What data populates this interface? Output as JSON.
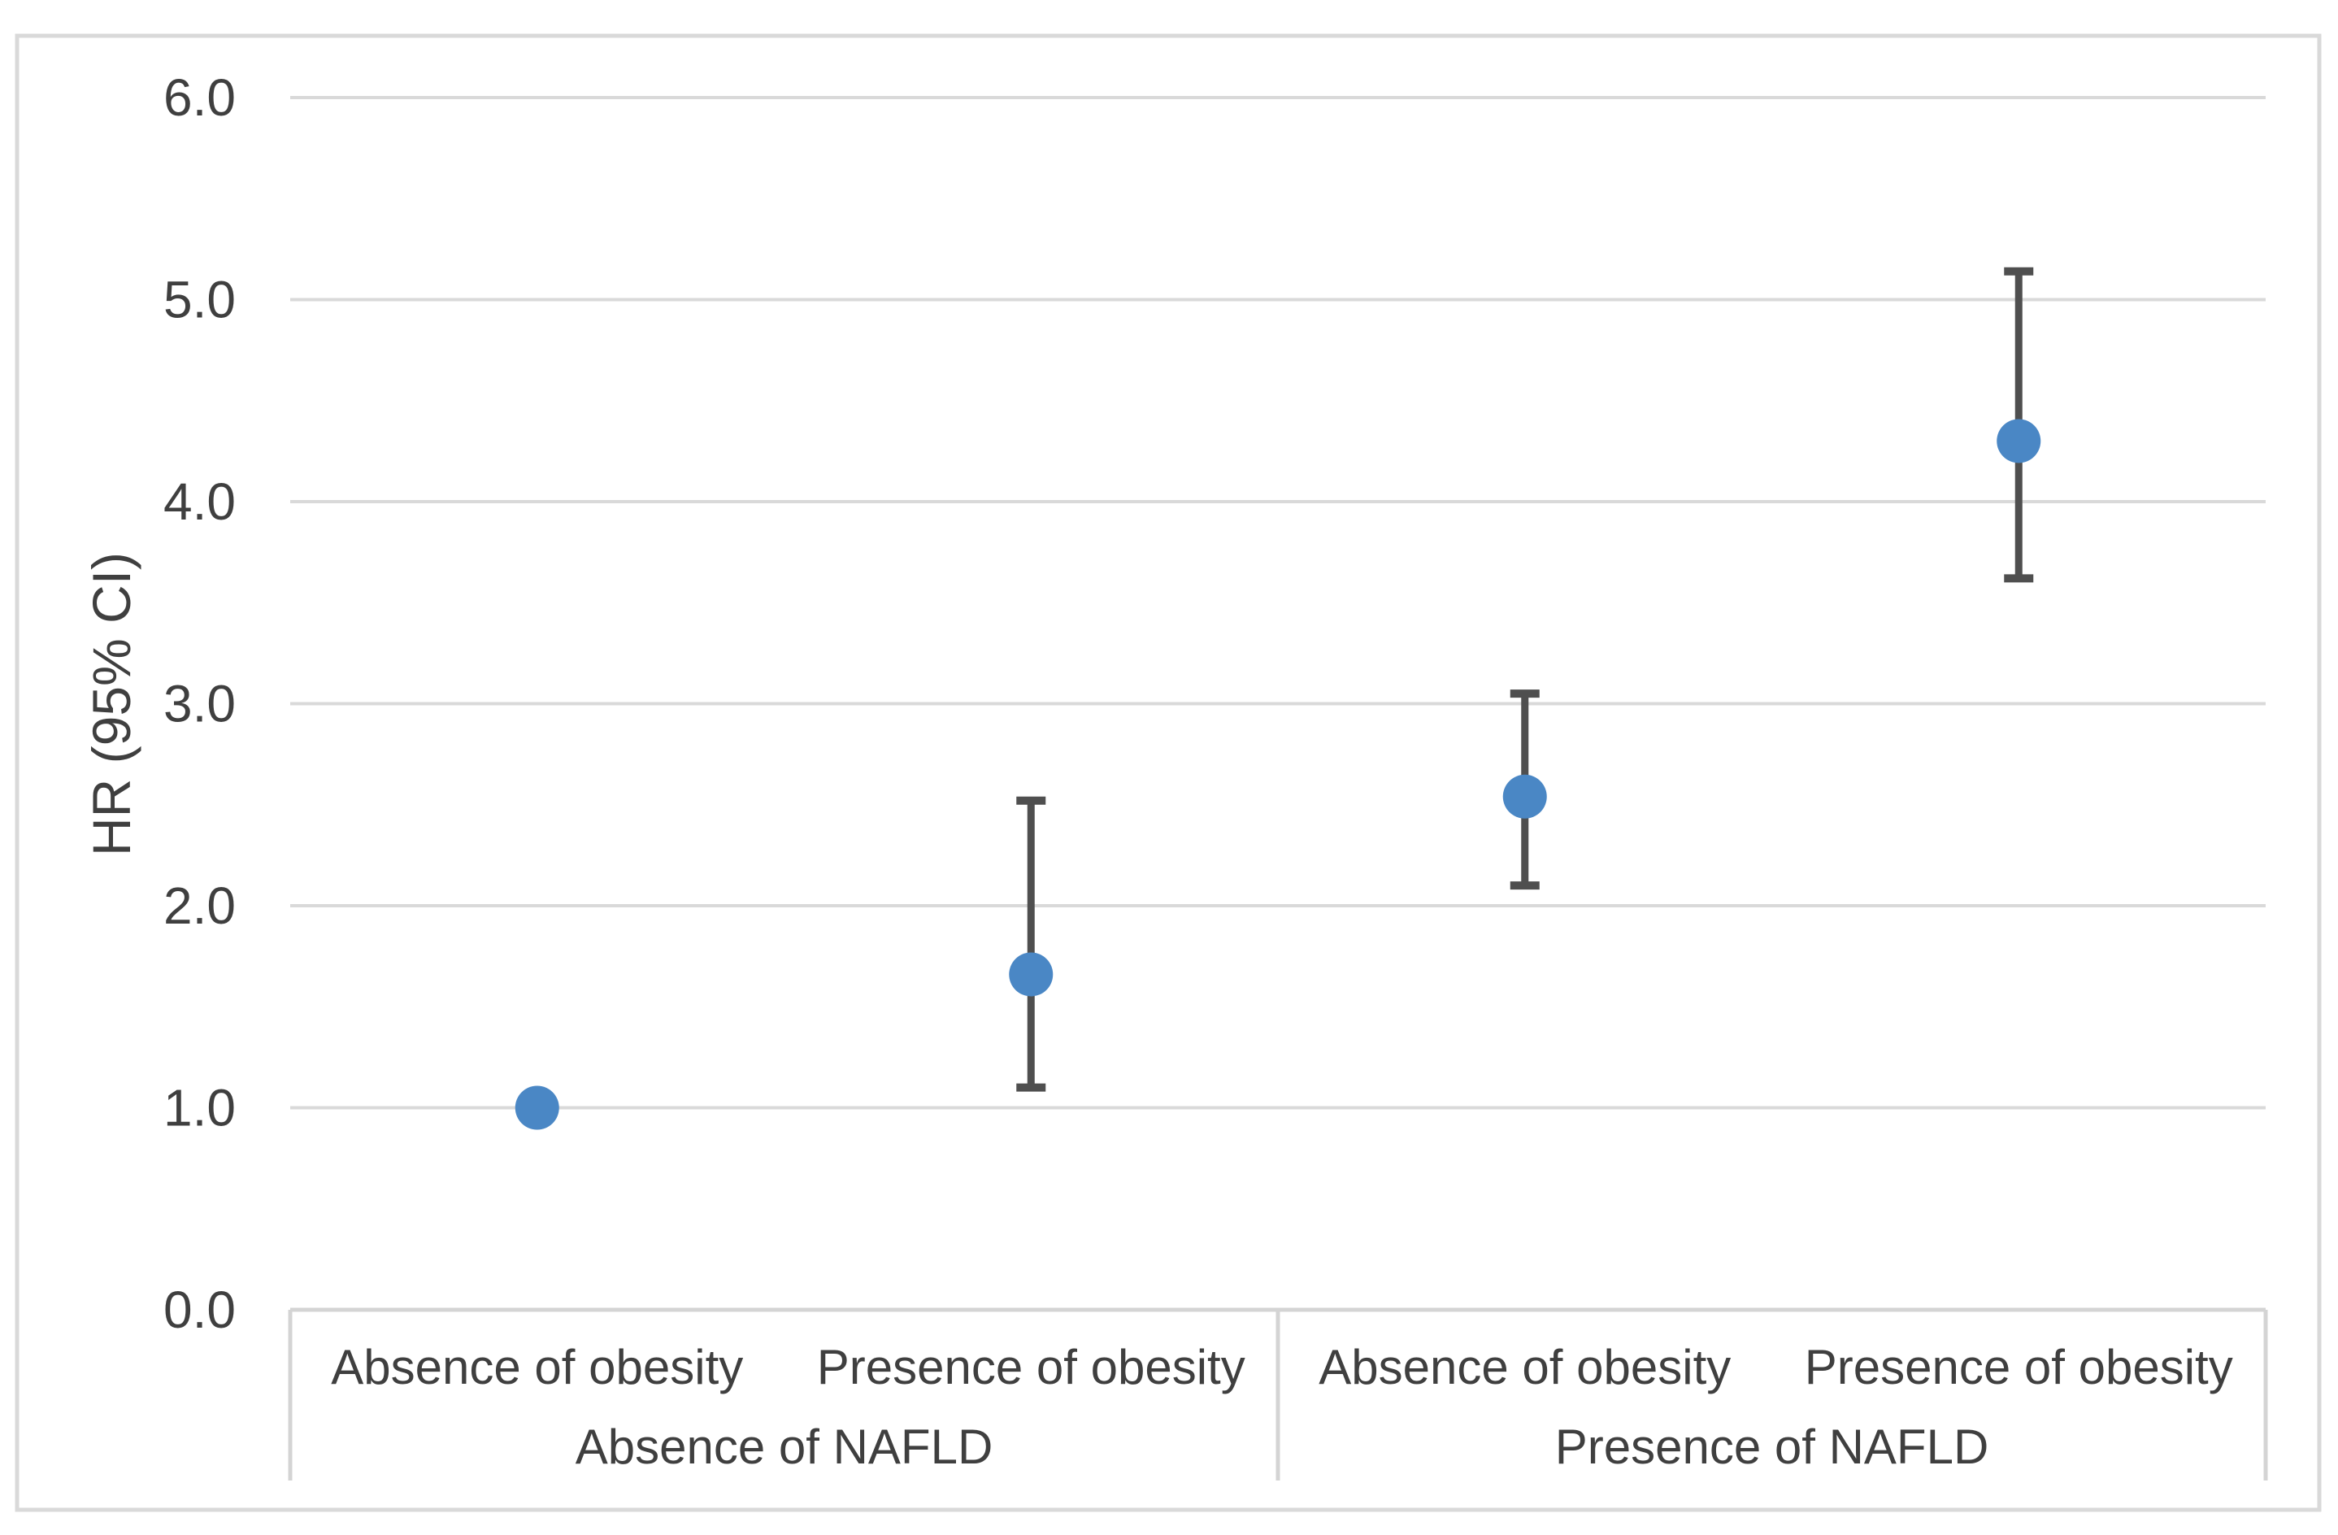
{
  "figure": {
    "background": "#ffffff",
    "border_color": "#d9d9d9",
    "gridline_color": "#d9d9d9",
    "table_line_color": "#d4d4d4",
    "text_color": "#3f3f3f",
    "marker_color": "#4a87c5",
    "error_bar_color": "#4f4f4f"
  },
  "chart_data": {
    "type": "scatter",
    "subtype": "point-estimates-with-95ci-error-bars",
    "title": "",
    "xlabel": "",
    "ylabel": "HR (95% CI)",
    "ylim": [
      0.0,
      6.0
    ],
    "ytick_interval": 1.0,
    "ytick_labels": [
      "0.0",
      "1.0",
      "2.0",
      "3.0",
      "4.0",
      "5.0",
      "6.0"
    ],
    "grid": true,
    "legend_position": "none",
    "categories": [
      {
        "label": "Absence of obesity",
        "group": "Absence of NAFLD"
      },
      {
        "label": "Presence of obesity",
        "group": "Absence of NAFLD"
      },
      {
        "label": "Absence of obesity",
        "group": "Presence of NAFLD"
      },
      {
        "label": "Presence of obesity",
        "group": "Presence of NAFLD"
      }
    ],
    "groups": [
      "Absence of NAFLD",
      "Presence of NAFLD"
    ],
    "series": [
      {
        "name": "HR (95% CI)",
        "points": [
          {
            "category": "Absence of obesity",
            "group": "Absence of NAFLD",
            "hr": 1.0,
            "ci_low": null,
            "ci_high": null
          },
          {
            "category": "Presence of obesity",
            "group": "Absence of NAFLD",
            "hr": 1.66,
            "ci_low": 1.1,
            "ci_high": 2.52
          },
          {
            "category": "Absence of obesity",
            "group": "Presence of NAFLD",
            "hr": 2.54,
            "ci_low": 2.1,
            "ci_high": 3.05
          },
          {
            "category": "Presence of obesity",
            "group": "Presence of NAFLD",
            "hr": 4.3,
            "ci_low": 3.62,
            "ci_high": 5.14
          }
        ]
      }
    ]
  }
}
